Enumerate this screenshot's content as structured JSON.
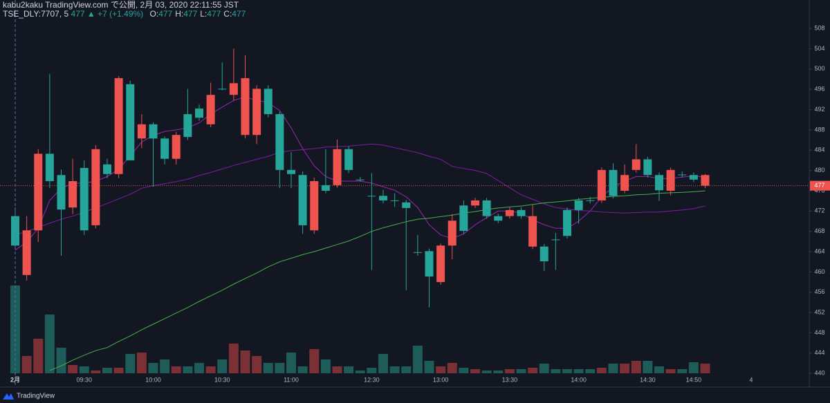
{
  "header": {
    "publisher": "kabu2kaku TradingView.com で公開, 2月 03, 2020 22:11:55 JST",
    "symbol": "TSE_DLY:7707, 5",
    "last": "477",
    "change": "▲ +7 (+1.49%)",
    "ohlc": [
      {
        "label": "O:",
        "value": "477"
      },
      {
        "label": "H:",
        "value": "477"
      },
      {
        "label": "L:",
        "value": "477"
      },
      {
        "label": "C:",
        "value": "477"
      }
    ]
  },
  "brand": "TradingView",
  "chart_data": {
    "type": "candlestick",
    "categories": [
      "2月",
      null,
      null,
      null,
      null,
      null,
      "09:30",
      null,
      null,
      null,
      null,
      null,
      "10:00",
      null,
      null,
      null,
      null,
      null,
      "10:30",
      null,
      null,
      null,
      null,
      null,
      "11:00",
      null,
      null,
      null,
      null,
      null,
      null,
      "12:30",
      null,
      null,
      null,
      null,
      null,
      "13:00",
      null,
      null,
      null,
      null,
      null,
      "13:30",
      null,
      null,
      null,
      null,
      null,
      "14:00",
      null,
      null,
      null,
      null,
      null,
      "14:30",
      null,
      null,
      null,
      "14:50",
      null,
      null,
      null,
      null,
      "4"
    ],
    "open": [
      465.2,
      468.2,
      483.3,
      477.9,
      472.3,
      477.9,
      468.2,
      484.2,
      479.3,
      498.2,
      482,
      489.1,
      486.3,
      482.3,
      487,
      486.6,
      490.4,
      494.9,
      496.1,
      497.2,
      498.2,
      496.1,
      491.1,
      480.1,
      479.3,
      469.2,
      477.9,
      476,
      484.2,
      480.1,
      478.2,
      475,
      474.1,
      474.1,
      472.6,
      463.9,
      459.1,
      465.2,
      470.1,
      468.1,
      474.1,
      471,
      470.1,
      472.2,
      471,
      471,
      462.1,
      466.4,
      467.1,
      472.2,
      474.1,
      480.1,
      475,
      479.1,
      482.2,
      479.1,
      476.1,
      480.1,
      479.2,
      478.2,
      479.1,
      null,
      null,
      null,
      null
    ],
    "high": [
      472.7,
      471,
      484.2,
      499,
      480.2,
      482.3,
      482,
      485,
      482.3,
      498.6,
      497.7,
      491.1,
      489.5,
      486.7,
      487.6,
      496.1,
      493,
      497.3,
      501.3,
      504,
      502.7,
      496.8,
      496.8,
      491.6,
      483.6,
      479.8,
      478.6,
      484.2,
      486.1,
      484.8,
      478.7,
      479.5,
      476.2,
      475.5,
      474.2,
      467.3,
      464.6,
      465.6,
      471.4,
      474.1,
      474.6,
      474.6,
      471.5,
      472.7,
      472.7,
      473.2,
      465.5,
      467.7,
      472.7,
      474.6,
      474.8,
      480.6,
      481.4,
      481.2,
      485.2,
      482.7,
      479.6,
      480.6,
      479.8,
      479.6,
      479.3,
      null,
      null,
      null,
      null
    ],
    "low": [
      464.5,
      458.3,
      465.9,
      476.5,
      463.2,
      471.4,
      467.3,
      468.6,
      478.5,
      478.5,
      482,
      484.4,
      476.8,
      481.2,
      481.2,
      486,
      489.8,
      488.5,
      495.8,
      493.8,
      486.3,
      485.2,
      490.5,
      476.5,
      476.5,
      467.5,
      467.5,
      475.5,
      476.6,
      479.5,
      477.8,
      460.4,
      473.5,
      472.8,
      456.4,
      463.2,
      453,
      457.5,
      462.5,
      467.5,
      472.6,
      470.5,
      469.6,
      470.5,
      470.5,
      464.5,
      460.2,
      460.4,
      466.6,
      469.5,
      473.5,
      473.6,
      474.5,
      475.5,
      479.6,
      478.6,
      474,
      475.1,
      478.6,
      477.7,
      476.5,
      null,
      null,
      null,
      null
    ],
    "close": [
      471,
      459.4,
      468.2,
      483.3,
      479.1,
      472.7,
      480.5,
      469.2,
      481.2,
      479.3,
      497,
      486.3,
      489.1,
      486.3,
      482.3,
      491.1,
      492.2,
      489.1,
      496.1,
      494.9,
      487,
      487,
      496.1,
      491.1,
      480.1,
      479.1,
      468.2,
      477.1,
      477.1,
      484.2,
      478.2,
      475,
      475,
      474.1,
      473.7,
      463.9,
      464.1,
      458,
      465.2,
      473.1,
      473.1,
      474.1,
      471,
      471,
      472.2,
      465,
      465,
      466.4,
      472.2,
      474.1,
      474.1,
      474.1,
      480.1,
      476,
      480.1,
      482.2,
      479.1,
      476,
      479.2,
      479.1,
      477,
      null,
      null,
      null,
      null
    ],
    "volume": [
      127,
      25,
      50,
      85,
      37,
      12,
      10,
      4,
      8,
      8,
      28,
      30,
      15,
      20,
      10,
      10,
      15,
      10,
      20,
      43,
      33,
      25,
      15,
      15,
      30,
      10,
      35,
      20,
      10,
      10,
      4,
      8,
      28,
      10,
      10,
      40,
      18,
      10,
      15,
      8,
      6,
      4,
      4,
      6,
      6,
      8,
      14,
      6,
      6,
      6,
      6,
      8,
      14,
      14,
      18,
      18,
      10,
      6,
      6,
      16,
      14,
      null,
      null,
      null,
      null
    ],
    "volume_lim": [
      0,
      540
    ],
    "lines": [
      {
        "color": "#9c27b0",
        "values": [
          464.3,
          465.9,
          468.6,
          474.1,
          476.5,
          477.5,
          477.5,
          477.9,
          478.8,
          480.2,
          482.9,
          485.6,
          486.9,
          487.7,
          488,
          488.4,
          489.4,
          491.1,
          492.5,
          493.8,
          494.5,
          493.8,
          493.4,
          491.8,
          488.4,
          484.3,
          480.9,
          478.8,
          477.9,
          477.9,
          477.9,
          477.5,
          476.8,
          476.1,
          474.8,
          472.7,
          469.3,
          467.3,
          466.6,
          467.5,
          469.3,
          470.7,
          472,
          472,
          471.6,
          470.3,
          469.3,
          468.6,
          468.6,
          470,
          472,
          474.8,
          476.8,
          477.9,
          478.8,
          478.8,
          478.4,
          478.4,
          478.7,
          478.9,
          478.7,
          null,
          null,
          null,
          null
        ]
      },
      {
        "color": "#7b1fa2",
        "values": [
          467.3,
          468,
          468.8,
          469.6,
          470.4,
          471,
          471.8,
          472.6,
          473.5,
          474.4,
          475.3,
          476.5,
          477,
          477.4,
          477.8,
          478.3,
          479,
          479.6,
          480.3,
          481,
          481.6,
          482.2,
          482.8,
          483.6,
          483.9,
          484.1,
          484.3,
          484.6,
          484.7,
          484.8,
          485,
          485.2,
          485,
          484.5,
          484,
          483.5,
          482.8,
          482.2,
          480.8,
          480.4,
          480,
          479.4,
          478,
          476.6,
          475.2,
          474.3,
          473.4,
          472.7,
          472.4,
          472.1,
          472,
          471.8,
          471.7,
          471.6,
          471.7,
          471.8,
          471.8,
          472,
          472.2,
          472.5,
          473,
          null,
          null,
          null,
          null
        ]
      },
      {
        "color": "#4caf50",
        "values": [
          null,
          null,
          null,
          440.6,
          441.5,
          442.6,
          443.6,
          444.5,
          445.1,
          446.3,
          447.4,
          448.6,
          449.7,
          450.8,
          451.9,
          453,
          454.2,
          455.3,
          456.4,
          457.6,
          458.7,
          459.8,
          461,
          462,
          462.7,
          463.4,
          464,
          464.7,
          465.4,
          466.1,
          467,
          468,
          468.7,
          469.3,
          469.9,
          470.4,
          470.6,
          470.9,
          471.2,
          471.6,
          471.9,
          472.3,
          472.6,
          472.8,
          473,
          473.3,
          473.6,
          473.8,
          474,
          474.3,
          474.5,
          474.7,
          474.9,
          475,
          475.2,
          475.3,
          475.5,
          475.6,
          475.7,
          475.8,
          476,
          null,
          null,
          null,
          null
        ]
      }
    ],
    "up_color": "#26a69a",
    "down_color": "#ef5350",
    "up_volume_color": "#1d5c58",
    "down_volume_color": "#7a3034",
    "current_price": 477,
    "current_price_color": "#ef5350",
    "ylim": [
      437.3,
      513.6
    ],
    "yticks": [
      440,
      444,
      448,
      452,
      456,
      460,
      464,
      468,
      472,
      476,
      480,
      484,
      488,
      492,
      496,
      500,
      504,
      508
    ]
  }
}
